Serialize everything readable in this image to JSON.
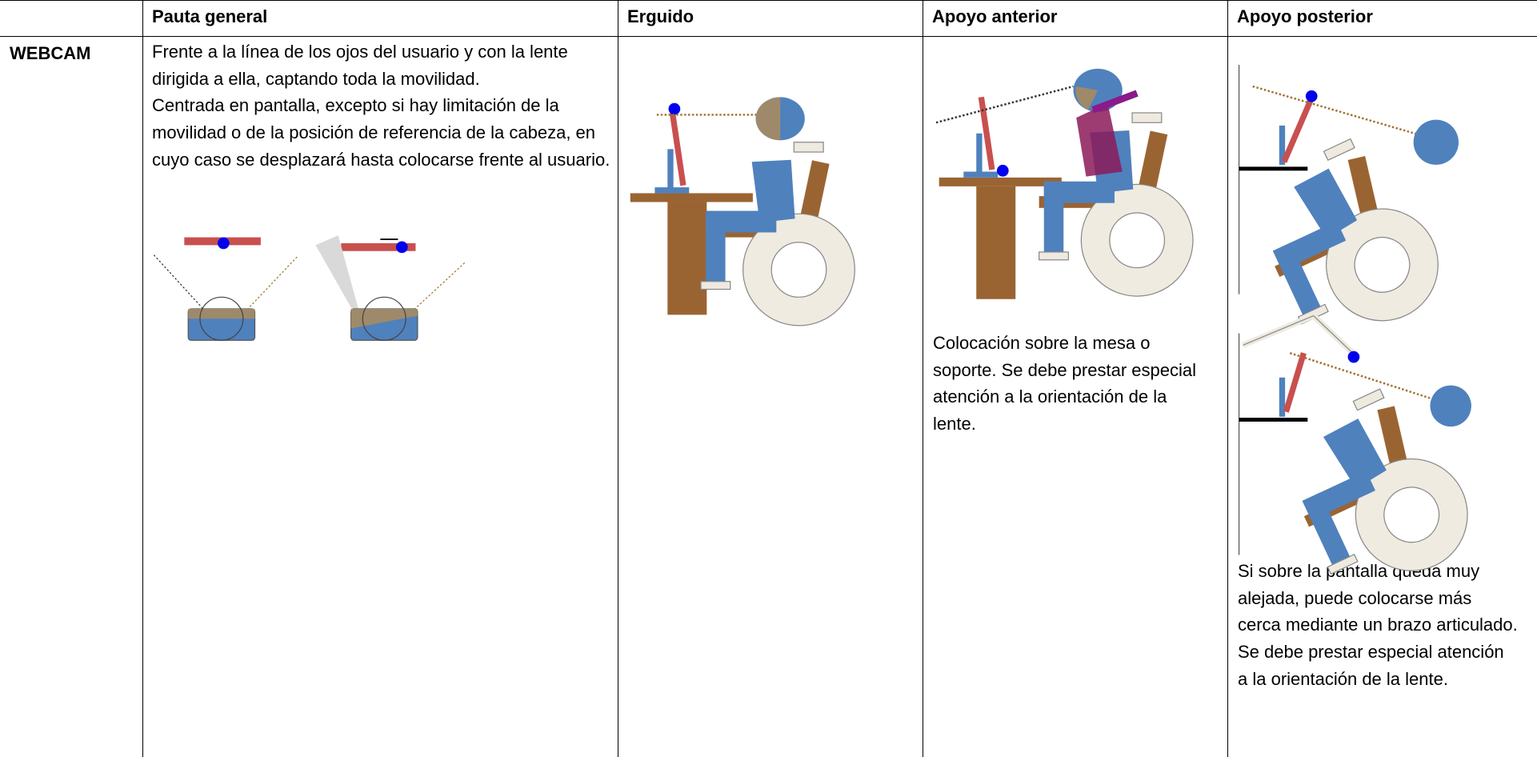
{
  "table": {
    "header": [
      "Pauta general",
      "Erguido",
      "Apoyo anterior",
      "Apoyo posterior"
    ],
    "row_label": "WEBCAM",
    "pauta_general": [
      "Frente a la línea de los ojos del usuario y con la lente dirigida a ella, captando toda la movilidad.",
      "Centrada en pantalla, excepto si hay limitación de la movilidad o de la posición de referencia de la cabeza, en cuyo caso se desplazará hasta colocarse frente al usuario."
    ],
    "apoyo_anterior": "Colocación sobre la mesa o soporte. Se debe prestar especial atención a la orientación de la lente.",
    "apoyo_posterior": "Si sobre la pantalla queda muy alejada, puede colocarse más cerca mediante un brazo articulado. Se debe prestar especial atención a la orientación de la lente."
  }
}
